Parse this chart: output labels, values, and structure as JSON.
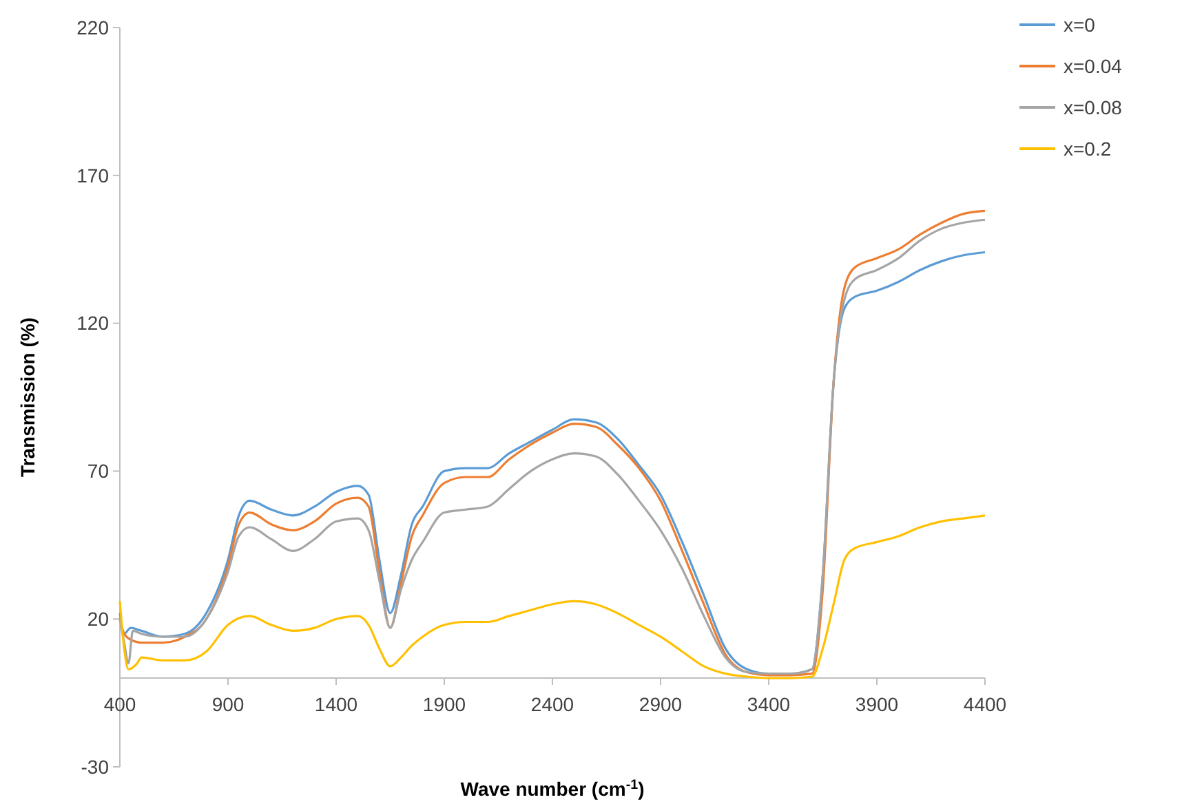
{
  "chart_data": {
    "type": "line",
    "xlabel": "Wave number (cm$^{-1}$)",
    "ylabel": "Transmission (%)",
    "xlim": [
      400,
      4400
    ],
    "xticks": [
      400,
      900,
      1400,
      1900,
      2400,
      2900,
      3400,
      3900,
      4400
    ],
    "ylim": [
      -30,
      220
    ],
    "yticks": [
      -30,
      20,
      70,
      120,
      170,
      220
    ],
    "grid": false,
    "legend": "right",
    "marker": "none",
    "line_style": "solid",
    "series": [
      {
        "name": "x=0",
        "color": "#5b9bd5",
        "x": [
          400,
          420,
          450,
          500,
          600,
          700,
          800,
          900,
          950,
          1000,
          1100,
          1200,
          1300,
          1400,
          1500,
          1550,
          1600,
          1650,
          1700,
          1750,
          1800,
          1900,
          2000,
          2100,
          2200,
          2300,
          2400,
          2500,
          2600,
          2700,
          2800,
          2900,
          3000,
          3100,
          3200,
          3300,
          3400,
          3500,
          3600,
          3650,
          3700,
          3750,
          3800,
          3900,
          4000,
          4100,
          4200,
          4300,
          4400
        ],
        "values": [
          22,
          15,
          17,
          16,
          14,
          15,
          22,
          40,
          55,
          60,
          57,
          55,
          58,
          63,
          65,
          62,
          40,
          22,
          35,
          52,
          58,
          70,
          71,
          71,
          76,
          80,
          84,
          87.5,
          86.5,
          81,
          72,
          62,
          46,
          28,
          10,
          3,
          1.5,
          1.5,
          3,
          35,
          100,
          125,
          129,
          131,
          134,
          138,
          141,
          143,
          144
        ]
      },
      {
        "name": "x=0.04",
        "color": "#ed7d31",
        "x": [
          400,
          420,
          450,
          500,
          600,
          700,
          800,
          900,
          950,
          1000,
          1100,
          1200,
          1300,
          1400,
          1500,
          1550,
          1600,
          1650,
          1700,
          1750,
          1800,
          1900,
          2000,
          2100,
          2200,
          2300,
          2400,
          2500,
          2600,
          2700,
          2800,
          2900,
          3000,
          3100,
          3200,
          3300,
          3400,
          3500,
          3600,
          3650,
          3700,
          3750,
          3800,
          3900,
          4000,
          4100,
          4200,
          4300,
          4400
        ],
        "values": [
          20,
          15,
          13,
          12,
          12,
          14,
          20,
          38,
          52,
          56,
          52,
          50,
          53,
          59,
          61,
          58,
          36,
          17,
          32,
          48,
          55,
          66,
          68,
          68,
          74,
          79,
          83,
          86,
          85,
          79,
          71,
          60,
          43,
          25,
          8,
          2,
          1,
          1,
          1.5,
          30,
          100,
          132,
          139,
          142,
          145,
          150,
          154,
          157,
          158
        ]
      },
      {
        "name": "x=0.08",
        "color": "#a5a5a5",
        "x": [
          400,
          420,
          440,
          460,
          500,
          600,
          700,
          800,
          900,
          950,
          1000,
          1100,
          1200,
          1300,
          1400,
          1500,
          1550,
          1600,
          1650,
          1700,
          1750,
          1800,
          1900,
          2000,
          2100,
          2200,
          2300,
          2400,
          2500,
          2600,
          2700,
          2800,
          2900,
          3000,
          3100,
          3200,
          3300,
          3400,
          3500,
          3600,
          3650,
          3700,
          3750,
          3800,
          3900,
          4000,
          4100,
          4200,
          4300,
          4400
        ],
        "values": [
          20,
          12,
          5,
          16,
          15,
          14,
          14,
          20,
          36,
          48,
          51,
          47,
          43,
          47,
          53,
          54,
          50,
          33,
          17,
          30,
          40,
          46,
          56,
          57,
          58,
          64,
          70,
          74,
          76,
          75,
          69,
          60,
          50,
          37,
          21,
          7,
          2,
          1.5,
          1.5,
          3,
          35,
          100,
          128,
          135,
          138,
          142,
          148,
          152,
          154,
          155
        ]
      },
      {
        "name": "x=0.2",
        "color": "#ffc000",
        "x": [
          400,
          420,
          440,
          480,
          500,
          600,
          700,
          800,
          900,
          1000,
          1100,
          1200,
          1300,
          1400,
          1500,
          1550,
          1600,
          1650,
          1700,
          1750,
          1800,
          1900,
          2000,
          2100,
          2200,
          2300,
          2400,
          2500,
          2600,
          2700,
          2800,
          2900,
          3000,
          3100,
          3200,
          3300,
          3400,
          3500,
          3600,
          3650,
          3700,
          3750,
          3800,
          3900,
          4000,
          4100,
          4200,
          4300,
          4400
        ],
        "values": [
          26,
          10,
          3,
          5,
          7,
          6,
          6,
          9,
          18,
          21,
          18,
          16,
          17,
          20,
          21,
          18,
          10,
          4,
          7,
          11,
          14,
          18,
          19,
          19,
          21,
          23,
          25,
          26,
          25,
          22,
          18,
          14,
          9,
          4,
          1.5,
          0.5,
          0,
          0,
          0.5,
          10,
          25,
          40,
          44,
          46,
          48,
          51,
          53,
          54,
          55
        ]
      }
    ]
  }
}
